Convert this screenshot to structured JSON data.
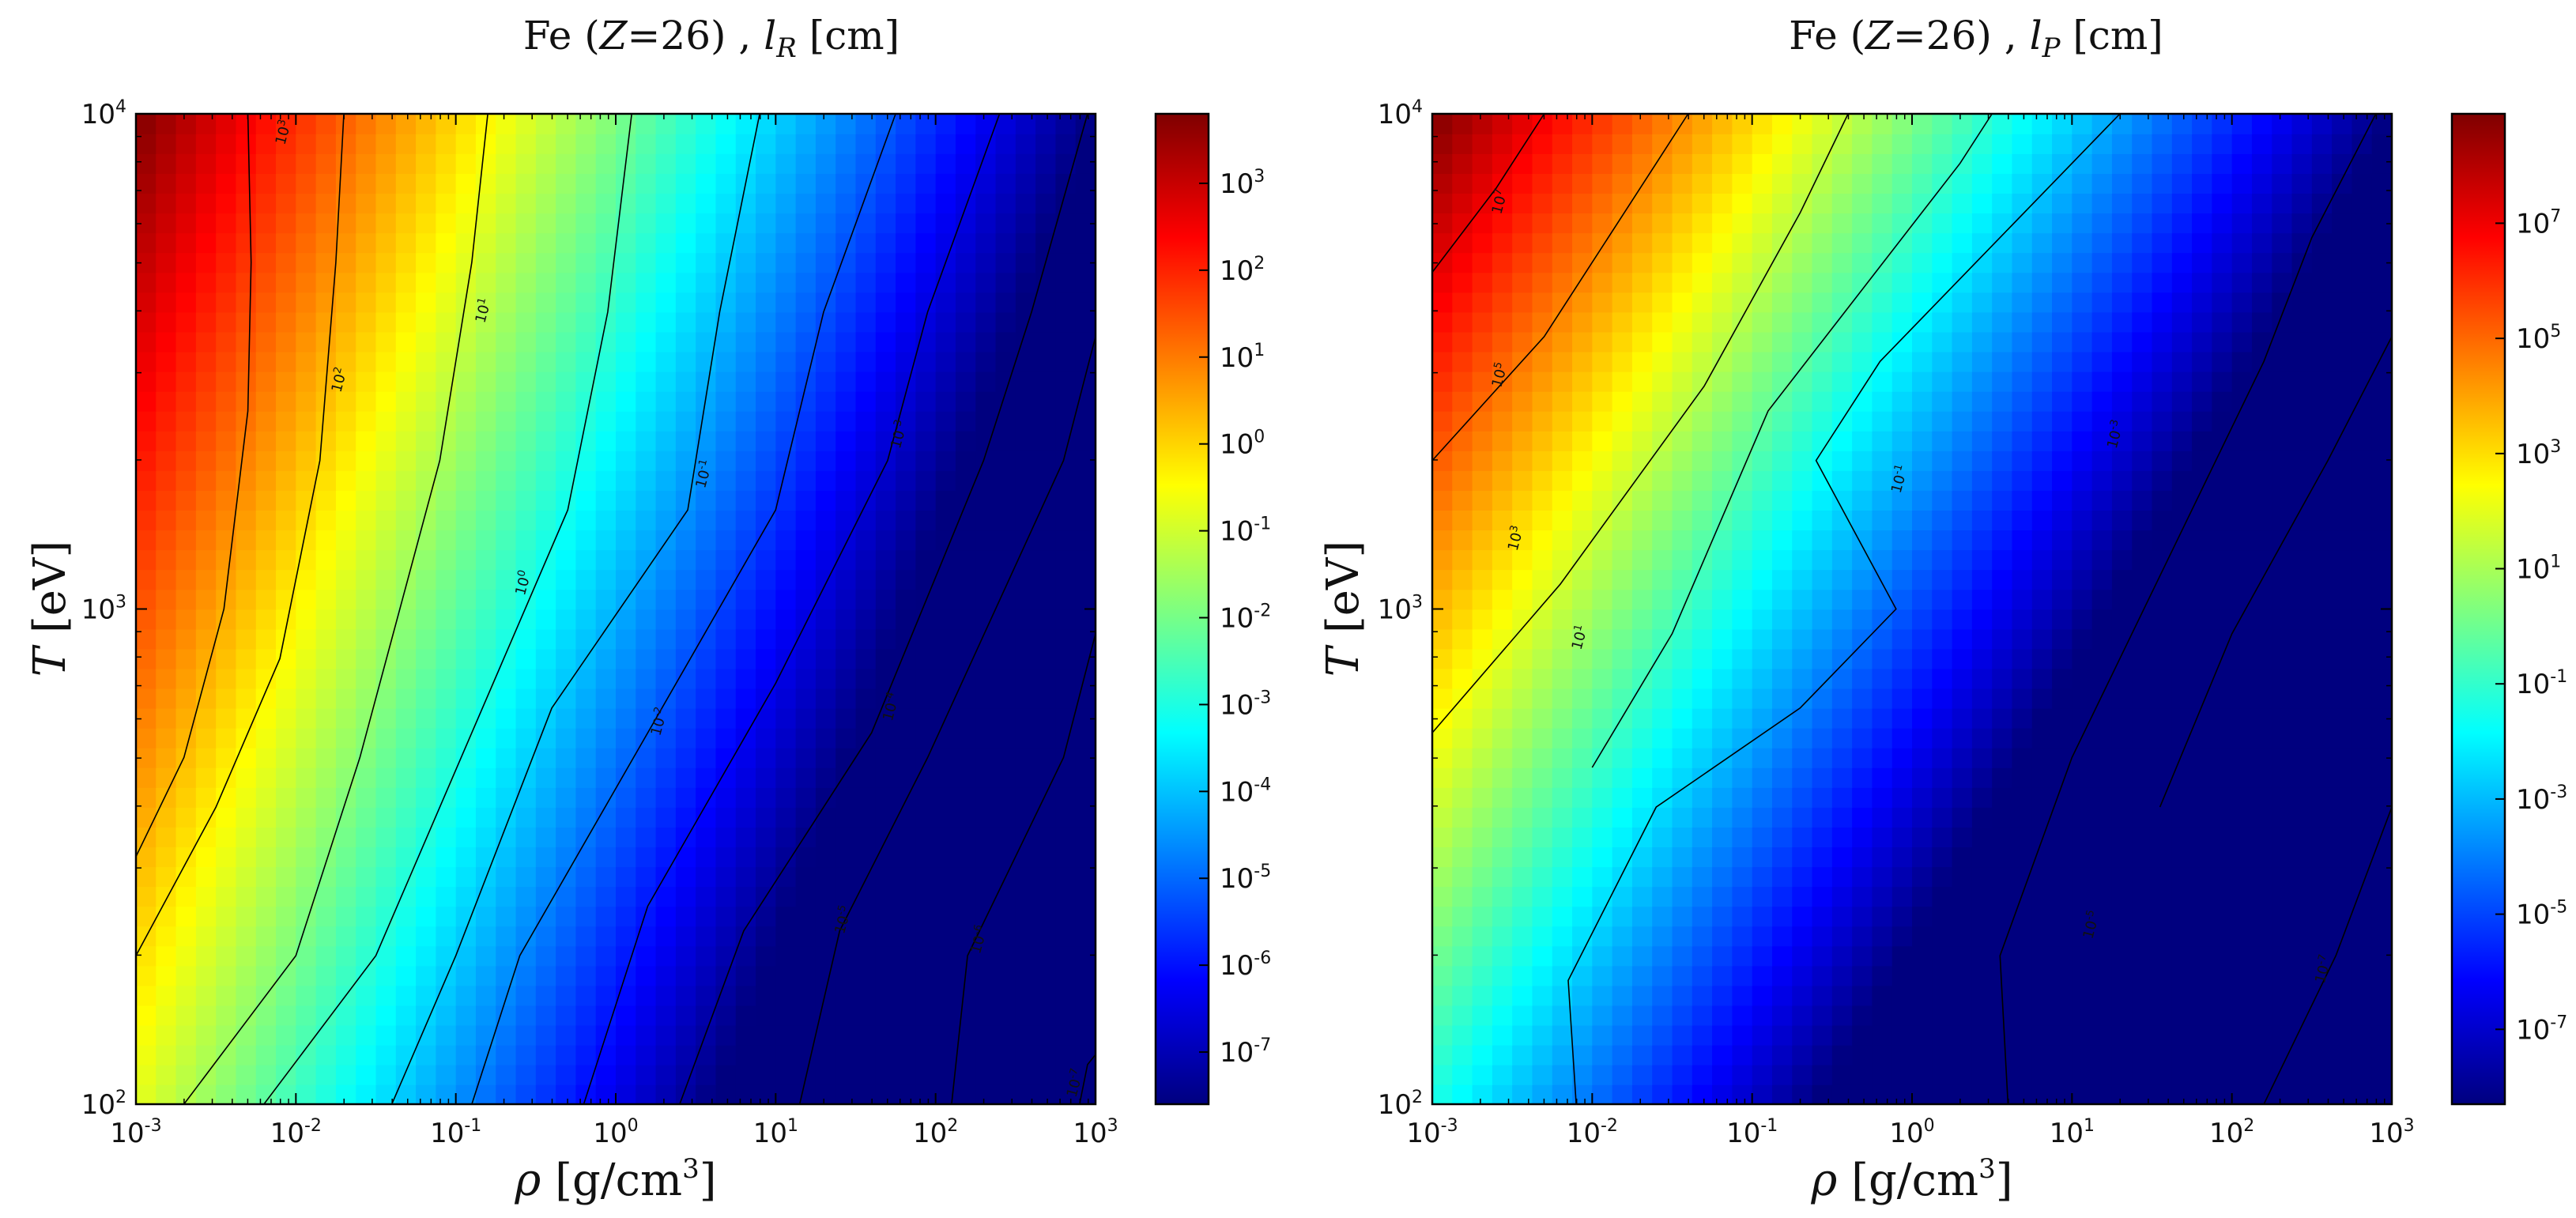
{
  "colormap": [
    "#00007f",
    "#0000ff",
    "#007fff",
    "#00ffff",
    "#7fff7f",
    "#ffff00",
    "#ff7f00",
    "#ff0000",
    "#7f0000"
  ],
  "chart_data": [
    {
      "type": "heatmap",
      "title_parts": [
        "Fe (",
        "Z",
        "=26) , ",
        "l",
        "R",
        " [cm]"
      ],
      "xlabel_parts": [
        "ρ",
        " [g/cm",
        "3",
        "]"
      ],
      "ylabel_parts": [
        "T",
        " [eV]"
      ],
      "x_scale": "log",
      "y_scale": "log",
      "xlim": [
        0.001,
        1000
      ],
      "ylim": [
        100,
        10000
      ],
      "x_ticks": [
        {
          "b": "10",
          "e": "-3",
          "v": -3
        },
        {
          "b": "10",
          "e": "-2",
          "v": -2
        },
        {
          "b": "10",
          "e": "-1",
          "v": -1
        },
        {
          "b": "10",
          "e": "0",
          "v": 0
        },
        {
          "b": "10",
          "e": "1",
          "v": 1
        },
        {
          "b": "10",
          "e": "2",
          "v": 2
        },
        {
          "b": "10",
          "e": "3",
          "v": 3
        }
      ],
      "y_ticks": [
        {
          "b": "10",
          "e": "2",
          "v": 2
        },
        {
          "b": "10",
          "e": "3",
          "v": 3
        },
        {
          "b": "10",
          "e": "4",
          "v": 4
        }
      ],
      "colorbar": {
        "scale": "log",
        "range_exp": [
          -7.6,
          3.8
        ],
        "ticks": [
          {
            "b": "10",
            "e": "3",
            "v": 3
          },
          {
            "b": "10",
            "e": "2",
            "v": 2
          },
          {
            "b": "10",
            "e": "1",
            "v": 1
          },
          {
            "b": "10",
            "e": "0",
            "v": 0
          },
          {
            "b": "10",
            "e": "-1",
            "v": -1
          },
          {
            "b": "10",
            "e": "-2",
            "v": -2
          },
          {
            "b": "10",
            "e": "-3",
            "v": -3
          },
          {
            "b": "10",
            "e": "-4",
            "v": -4
          },
          {
            "b": "10",
            "e": "-5",
            "v": -5
          },
          {
            "b": "10",
            "e": "-6",
            "v": -6
          },
          {
            "b": "10",
            "e": "-7",
            "v": -7
          }
        ]
      },
      "field_model": {
        "a": 0.4,
        "c": -1.5,
        "d": 0.17,
        "e": 0.25
      },
      "contours": [
        {
          "level_exp": 3,
          "label": "10³",
          "points": [
            [
              -3,
              2.5
            ],
            [
              -2.7,
              2.7
            ],
            [
              -2.45,
              3.0
            ],
            [
              -2.3,
              3.4
            ],
            [
              -2.28,
              3.7
            ],
            [
              -2.3,
              4.0
            ]
          ]
        },
        {
          "level_exp": 2,
          "label": "10²",
          "points": [
            [
              -3,
              2.3
            ],
            [
              -2.5,
              2.6
            ],
            [
              -2.1,
              2.9
            ],
            [
              -1.85,
              3.3
            ],
            [
              -1.75,
              3.7
            ],
            [
              -1.7,
              4.0
            ]
          ]
        },
        {
          "level_exp": 1,
          "label": "10¹",
          "points": [
            [
              -2.7,
              2.0
            ],
            [
              -2.0,
              2.3
            ],
            [
              -1.6,
              2.7
            ],
            [
              -1.1,
              3.3
            ],
            [
              -0.9,
              3.7
            ],
            [
              -0.8,
              4.0
            ]
          ]
        },
        {
          "level_exp": 0,
          "label": "10⁰",
          "points": [
            [
              -2.2,
              2.0
            ],
            [
              -1.5,
              2.3
            ],
            [
              -0.9,
              2.75
            ],
            [
              -0.3,
              3.2
            ],
            [
              -0.05,
              3.6
            ],
            [
              0.1,
              4.0
            ]
          ]
        },
        {
          "level_exp": -1,
          "label": "10⁻¹",
          "points": [
            [
              -1.4,
              2.0
            ],
            [
              -1.0,
              2.3
            ],
            [
              -0.4,
              2.8
            ],
            [
              0.45,
              3.2
            ],
            [
              0.65,
              3.6
            ],
            [
              0.9,
              4.0
            ]
          ]
        },
        {
          "level_exp": -2,
          "label": "10⁻²",
          "points": [
            [
              -0.9,
              2.0
            ],
            [
              -0.6,
              2.3
            ],
            [
              0.2,
              2.75
            ],
            [
              1.0,
              3.2
            ],
            [
              1.3,
              3.6
            ],
            [
              1.75,
              4.0
            ]
          ]
        },
        {
          "level_exp": -3,
          "label": "10⁻³",
          "points": [
            [
              -0.2,
              2.0
            ],
            [
              0.2,
              2.4
            ],
            [
              1.0,
              2.85
            ],
            [
              1.7,
              3.3
            ],
            [
              1.95,
              3.6
            ],
            [
              2.4,
              4.0
            ]
          ]
        },
        {
          "level_exp": -4,
          "label": "10⁻⁴",
          "points": [
            [
              0.4,
              2.0
            ],
            [
              0.8,
              2.35
            ],
            [
              1.6,
              2.75
            ],
            [
              2.3,
              3.3
            ],
            [
              2.6,
              3.6
            ],
            [
              2.95,
              4.0
            ]
          ]
        },
        {
          "level_exp": -5,
          "label": "10⁻⁵",
          "points": [
            [
              1.15,
              2.0
            ],
            [
              1.4,
              2.35
            ],
            [
              1.95,
              2.7
            ],
            [
              2.8,
              3.3
            ],
            [
              3.0,
              3.55
            ]
          ]
        },
        {
          "level_exp": -6,
          "label": "10⁻⁶",
          "points": [
            [
              2.1,
              2.0
            ],
            [
              2.2,
              2.3
            ],
            [
              2.8,
              2.7
            ],
            [
              3.0,
              2.95
            ]
          ]
        },
        {
          "level_exp": -7,
          "label": "10⁻⁷",
          "points": [
            [
              2.9,
              2.0
            ],
            [
              2.95,
              2.08
            ],
            [
              3.0,
              2.1
            ]
          ]
        }
      ],
      "contour_labels": [
        {
          "text_b": "10",
          "text_e": "3",
          "x": -2.05,
          "y": 3.96
        },
        {
          "text_b": "10",
          "text_e": "2",
          "x": -1.7,
          "y": 3.46
        },
        {
          "text_b": "10",
          "text_e": "1",
          "x": -0.8,
          "y": 3.6
        },
        {
          "text_b": "10",
          "text_e": "0",
          "x": -0.55,
          "y": 3.05
        },
        {
          "text_b": "10",
          "text_e": "-1",
          "x": 0.58,
          "y": 3.27
        },
        {
          "text_b": "10",
          "text_e": "-2",
          "x": 0.3,
          "y": 2.77
        },
        {
          "text_b": "10",
          "text_e": "-3",
          "x": 1.8,
          "y": 3.35
        },
        {
          "text_b": "10",
          "text_e": "-4",
          "x": 1.75,
          "y": 2.8
        },
        {
          "text_b": "10",
          "text_e": "-5",
          "x": 1.45,
          "y": 2.37
        },
        {
          "text_b": "10",
          "text_e": "-6",
          "x": 2.3,
          "y": 2.33
        },
        {
          "text_b": "10",
          "text_e": "-7",
          "x": 2.9,
          "y": 2.04
        }
      ]
    },
    {
      "type": "heatmap",
      "title_parts": [
        "Fe (",
        "Z",
        "=26) , ",
        "l",
        "P",
        " [cm]"
      ],
      "xlabel_parts": [
        "ρ",
        " [g/cm",
        "3",
        "]"
      ],
      "ylabel_parts": [
        "T",
        " [eV]"
      ],
      "x_scale": "log",
      "y_scale": "log",
      "xlim": [
        0.001,
        1000
      ],
      "ylim": [
        100,
        10000
      ],
      "x_ticks": [
        {
          "b": "10",
          "e": "-3",
          "v": -3
        },
        {
          "b": "10",
          "e": "-2",
          "v": -2
        },
        {
          "b": "10",
          "e": "-1",
          "v": -1
        },
        {
          "b": "10",
          "e": "0",
          "v": 0
        },
        {
          "b": "10",
          "e": "1",
          "v": 1
        },
        {
          "b": "10",
          "e": "2",
          "v": 2
        },
        {
          "b": "10",
          "e": "3",
          "v": 3
        }
      ],
      "y_ticks": [
        {
          "b": "10",
          "e": "2",
          "v": 2
        },
        {
          "b": "10",
          "e": "3",
          "v": 3
        },
        {
          "b": "10",
          "e": "4",
          "v": 4
        }
      ],
      "colorbar": {
        "scale": "log",
        "range_exp": [
          -8.3,
          8.9
        ],
        "ticks": [
          {
            "b": "10",
            "e": "7",
            "v": 7
          },
          {
            "b": "10",
            "e": "5",
            "v": 5
          },
          {
            "b": "10",
            "e": "3",
            "v": 3
          },
          {
            "b": "10",
            "e": "1",
            "v": 1
          },
          {
            "b": "10",
            "e": "-1",
            "v": -1
          },
          {
            "b": "10",
            "e": "-3",
            "v": -3
          },
          {
            "b": "10",
            "e": "-5",
            "v": -5
          },
          {
            "b": "10",
            "e": "-7",
            "v": -7
          }
        ]
      },
      "field_model": {
        "a": 0.6,
        "c": -2.4,
        "d": 0.28,
        "e": 0.0
      },
      "contours": [
        {
          "level_exp": 7,
          "label": "10⁷",
          "points": [
            [
              -3,
              3.68
            ],
            [
              -2.6,
              3.85
            ],
            [
              -2.3,
              4.0
            ]
          ]
        },
        {
          "level_exp": 5,
          "label": "10⁵",
          "points": [
            [
              -3,
              3.3
            ],
            [
              -2.3,
              3.55
            ],
            [
              -1.6,
              3.9
            ],
            [
              -1.4,
              4.0
            ]
          ]
        },
        {
          "level_exp": 3,
          "label": "10³",
          "points": [
            [
              -3,
              2.75
            ],
            [
              -2.2,
              3.05
            ],
            [
              -1.3,
              3.45
            ],
            [
              -0.7,
              3.8
            ],
            [
              -0.4,
              4.0
            ]
          ]
        },
        {
          "level_exp": 1,
          "label": "10¹",
          "points": [
            [
              -2.0,
              2.68
            ],
            [
              -1.5,
              2.95
            ],
            [
              -0.9,
              3.4
            ],
            [
              0.3,
              3.9
            ],
            [
              0.5,
              4.0
            ]
          ]
        },
        {
          "level_exp": -1,
          "label": "10⁻¹",
          "points": [
            [
              -2.1,
              2.0
            ],
            [
              -2.15,
              2.25
            ],
            [
              -1.6,
              2.6
            ],
            [
              -0.7,
              2.8
            ],
            [
              -0.1,
              3.0
            ],
            [
              -0.6,
              3.3
            ],
            [
              -0.2,
              3.5
            ],
            [
              0.4,
              3.7
            ],
            [
              1.0,
              3.9
            ],
            [
              1.3,
              4.0
            ]
          ]
        },
        {
          "level_exp": -3,
          "label": "10⁻³",
          "points": [
            [
              0.6,
              2.0
            ],
            [
              0.55,
              2.3
            ],
            [
              1.0,
              2.7
            ],
            [
              1.6,
              3.1
            ],
            [
              2.2,
              3.5
            ],
            [
              2.5,
              3.75
            ],
            [
              2.9,
              4.0
            ]
          ]
        },
        {
          "level_exp": -5,
          "label": "10⁻⁵",
          "points": [
            [
              1.55,
              2.6
            ],
            [
              2.0,
              2.95
            ],
            [
              2.6,
              3.3
            ],
            [
              3.0,
              3.55
            ]
          ]
        },
        {
          "level_exp": -7,
          "label": "10⁻⁷",
          "points": [
            [
              2.2,
              2.0
            ],
            [
              2.65,
              2.3
            ],
            [
              3.0,
              2.6
            ]
          ]
        }
      ],
      "contour_labels": [
        {
          "text_b": "10",
          "text_e": "7",
          "x": -2.55,
          "y": 3.82
        },
        {
          "text_b": "10",
          "text_e": "5",
          "x": -2.55,
          "y": 3.47
        },
        {
          "text_b": "10",
          "text_e": "3",
          "x": -2.45,
          "y": 3.14
        },
        {
          "text_b": "10",
          "text_e": "1",
          "x": -2.05,
          "y": 2.94
        },
        {
          "text_b": "10",
          "text_e": "-1",
          "x": -0.05,
          "y": 3.26
        },
        {
          "text_b": "10",
          "text_e": "-3",
          "x": 1.3,
          "y": 3.35
        },
        {
          "text_b": "10",
          "text_e": "-5",
          "x": 1.15,
          "y": 2.36
        },
        {
          "text_b": "10",
          "text_e": "-7",
          "x": 2.6,
          "y": 2.27
        }
      ]
    }
  ]
}
